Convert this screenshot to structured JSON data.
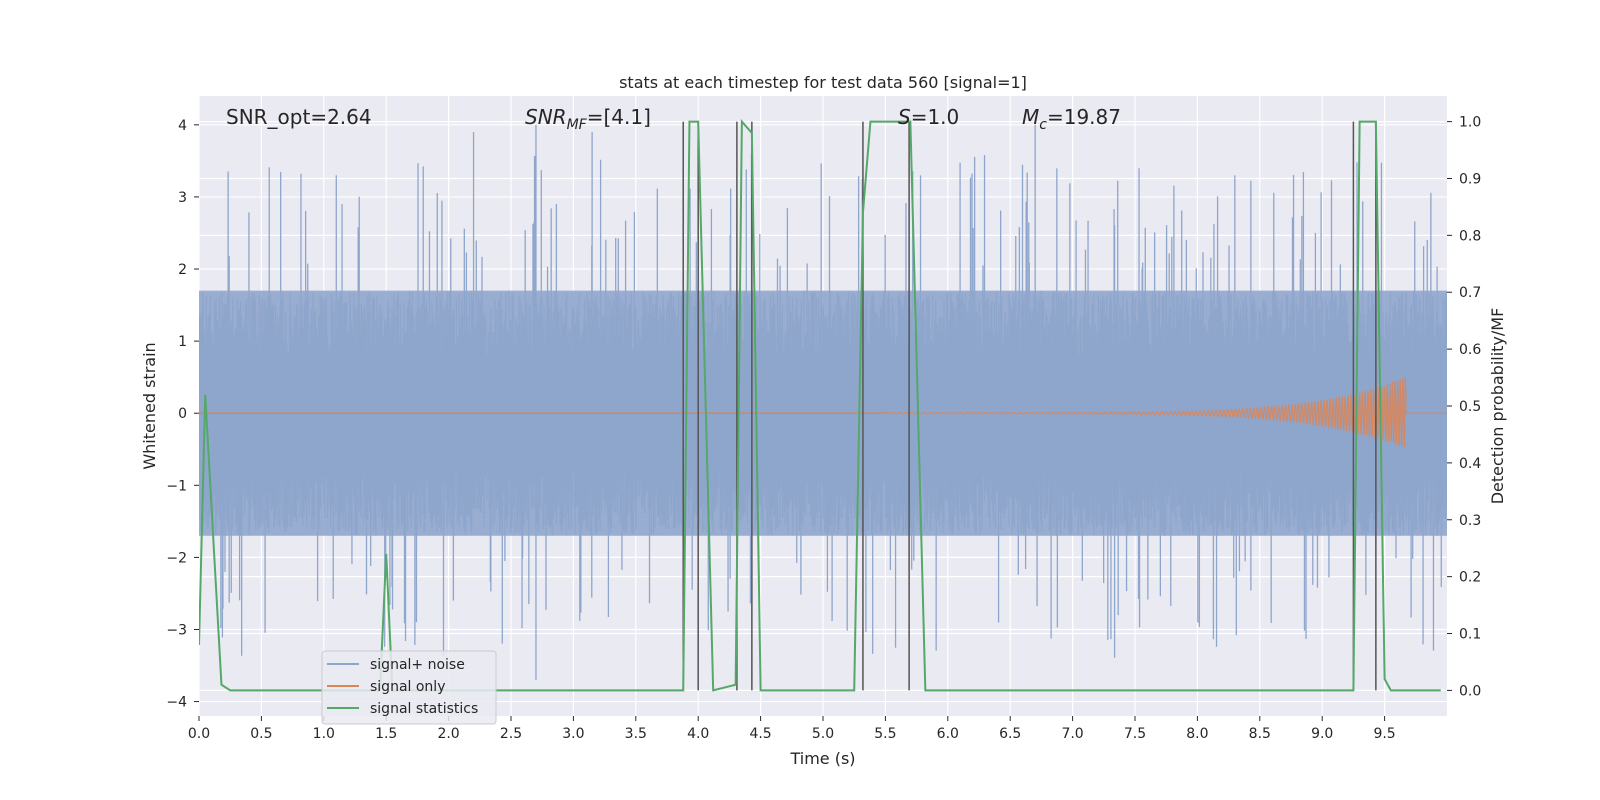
{
  "chart_data": {
    "type": "line",
    "title": "stats at each timestep for test data 560 [signal=1]",
    "xlabel": "Time (s)",
    "ylabel": "Whitened strain",
    "y2label": "Detection probability/MF",
    "xlim": [
      0.0,
      10.0
    ],
    "ylim": [
      -4.2,
      4.4
    ],
    "y2lim": [
      -0.045,
      1.045
    ],
    "xticks": [
      "0.0",
      "0.5",
      "1.0",
      "1.5",
      "2.0",
      "2.5",
      "3.0",
      "3.5",
      "4.0",
      "4.5",
      "5.0",
      "5.5",
      "6.0",
      "6.5",
      "7.0",
      "7.5",
      "8.0",
      "8.5",
      "9.0",
      "9.5"
    ],
    "yticks": [
      "4",
      "3",
      "2",
      "1",
      "0",
      "−1",
      "−2",
      "−3",
      "−4"
    ],
    "y2ticks": [
      "1.0",
      "0.9",
      "0.8",
      "0.7",
      "0.6",
      "0.5",
      "0.4",
      "0.3",
      "0.2",
      "0.1",
      "0.0"
    ],
    "grid": true,
    "legend_position": "lower-left",
    "annotations": {
      "snr_opt": "SNR_opt=2.64",
      "snr_mf_name": "SNR",
      "snr_mf_sub": "MF",
      "snr_mf_value": "=[4.1]",
      "s_name": "S",
      "s_value": "=1.0",
      "mc_name": "M",
      "mc_sub": "c",
      "mc_value": "=19.87"
    },
    "series": [
      {
        "name": "signal+ noise",
        "color": "#8fa6cc",
        "description_values": {
          "typical_range": [
            -1.7,
            1.7
          ],
          "max": 4.0,
          "min": -3.7
        }
      },
      {
        "name": "signal only",
        "color": "#dd8452",
        "chirp": {
          "start_time": 5.5,
          "end_time": 9.67,
          "peak_amplitude": 0.5
        }
      },
      {
        "name": "signal statistics",
        "color": "#55a868",
        "axis": "right",
        "x": [
          0.0,
          0.05,
          0.18,
          0.25,
          1.45,
          1.5,
          1.55,
          3.88,
          3.93,
          4.0,
          4.12,
          4.3,
          4.35,
          4.43,
          4.5,
          5.25,
          5.32,
          5.38,
          5.7,
          5.82,
          9.25,
          9.3,
          9.43,
          9.5,
          9.55,
          9.95
        ],
        "values": [
          0.08,
          0.52,
          0.01,
          0.0,
          0.0,
          0.24,
          0.0,
          0.0,
          1.0,
          1.0,
          0.0,
          0.01,
          1.0,
          0.98,
          0.0,
          0.0,
          0.84,
          1.0,
          1.0,
          0.0,
          0.0,
          1.0,
          1.0,
          0.02,
          0.0,
          0.0
        ]
      },
      {
        "name": "",
        "color": "#555555",
        "type": "vlines",
        "x": [
          3.88,
          4.0,
          4.31,
          4.43,
          5.32,
          5.69,
          9.25,
          9.43
        ]
      }
    ]
  }
}
